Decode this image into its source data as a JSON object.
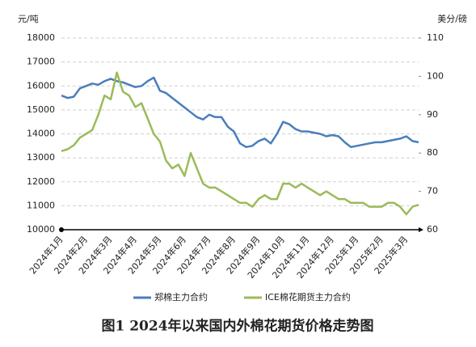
{
  "chart_data": {
    "type": "line",
    "title": "图1 2024年以来国内外棉花期货价格走势图",
    "y_label": "元/吨",
    "y2_label": "美分/磅",
    "categories": [
      "2024年1月",
      null,
      null,
      null,
      "2024年2月",
      null,
      null,
      null,
      "2024年3月",
      null,
      null,
      null,
      "2024年4月",
      null,
      null,
      null,
      "2024年5月",
      null,
      null,
      null,
      "2024年6月",
      null,
      null,
      null,
      "2024年7月",
      null,
      null,
      null,
      "2024年8月",
      null,
      null,
      null,
      "2024年9月",
      null,
      null,
      null,
      "2024年10月",
      null,
      null,
      null,
      "2024年11月",
      null,
      null,
      null,
      "2024年12月",
      null,
      null,
      null,
      "2025年1月",
      null,
      null,
      null,
      "2025年2月",
      null,
      null,
      null,
      "2025年3月",
      null,
      null
    ],
    "ylim": [
      10000,
      18000
    ],
    "yticks": [
      10000,
      11000,
      12000,
      13000,
      14000,
      15000,
      16000,
      17000,
      18000
    ],
    "y2lim": [
      60,
      110
    ],
    "y2ticks": [
      60,
      70,
      80,
      90,
      100,
      110
    ],
    "grid": true,
    "legend": "bottom",
    "series": [
      {
        "name": "郑棉主力合约",
        "color": "#4a7ebb",
        "values": [
          15600,
          15500,
          15550,
          15900,
          16000,
          16100,
          16050,
          16200,
          16300,
          16200,
          16150,
          16050,
          15950,
          16000,
          16200,
          16350,
          15800,
          15700,
          15500,
          15300,
          15100,
          14900,
          14700,
          14600,
          14800,
          14700,
          14700,
          14300,
          14100,
          13600,
          13450,
          13500,
          13700,
          13800,
          13600,
          14000,
          14500,
          14400,
          14200,
          14100,
          14100,
          14050,
          14000,
          13900,
          13950,
          13900,
          13650,
          13450,
          13500,
          13550,
          13600,
          13650,
          13650,
          13700,
          13750,
          13800,
          13900,
          13700,
          13650
        ]
      },
      {
        "name": "ICE棉花期货主力合约",
        "color": "#9bbb59",
        "axis": "y2",
        "values": [
          80.5,
          81,
          82,
          84,
          85,
          86,
          90,
          95,
          94,
          101,
          96,
          95,
          92,
          93,
          89,
          85,
          83,
          78,
          76,
          77,
          74,
          80,
          76,
          72,
          71,
          71,
          70,
          69,
          68,
          67,
          67,
          66,
          68,
          69,
          68,
          68,
          72,
          72,
          71,
          72,
          71,
          70,
          69,
          70,
          69,
          68,
          68,
          67,
          67,
          67,
          66,
          66,
          66,
          67,
          67,
          66,
          64,
          66,
          66.5
        ]
      }
    ]
  }
}
